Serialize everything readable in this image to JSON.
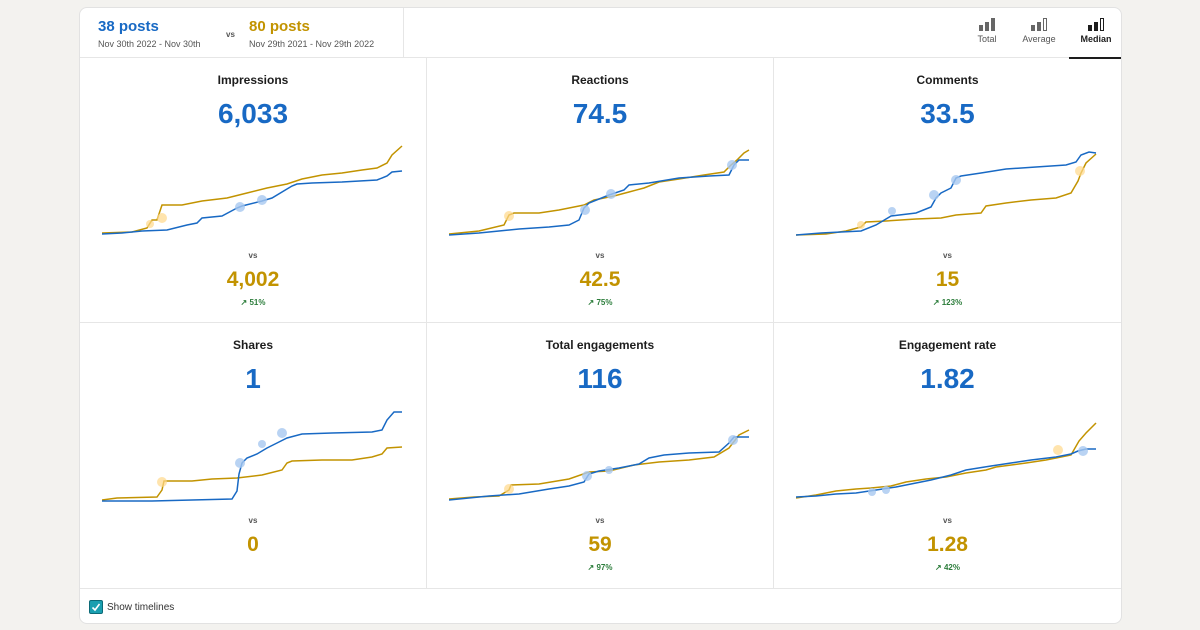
{
  "header": {
    "current": {
      "count": "38 posts",
      "range": "Nov 30th 2022 - Nov 30th"
    },
    "vs": "vs",
    "previous": {
      "count": "80 posts",
      "range": "Nov 29th 2021 - Nov 29th 2022"
    },
    "modes": [
      {
        "label": "Total",
        "icon": "bar-chart-total-icon",
        "active": false
      },
      {
        "label": "Average",
        "icon": "bar-chart-average-icon",
        "active": false
      },
      {
        "label": "Median",
        "icon": "bar-chart-median-icon",
        "active": true
      }
    ]
  },
  "colors": {
    "current": "#1869c4",
    "previous": "#c29300",
    "positive": "#2c7d3b"
  },
  "metrics": [
    {
      "title": "Impressions",
      "value": "6,033",
      "vs": "vs",
      "compare": "4,002",
      "change": "↗ 51%"
    },
    {
      "title": "Reactions",
      "value": "74.5",
      "vs": "vs",
      "compare": "42.5",
      "change": "↗ 75%"
    },
    {
      "title": "Comments",
      "value": "33.5",
      "vs": "vs",
      "compare": "15",
      "change": "↗ 123%"
    },
    {
      "title": "Shares",
      "value": "1",
      "vs": "vs",
      "compare": "0",
      "change": ""
    },
    {
      "title": "Total engagements",
      "value": "116",
      "vs": "vs",
      "compare": "59",
      "change": "↗ 97%"
    },
    {
      "title": "Engagement rate",
      "value": "1.82",
      "vs": "vs",
      "compare": "1.28",
      "change": "↗ 42%"
    }
  ],
  "footer": {
    "show_timelines_label": "Show timelines",
    "show_timelines_checked": true
  }
}
